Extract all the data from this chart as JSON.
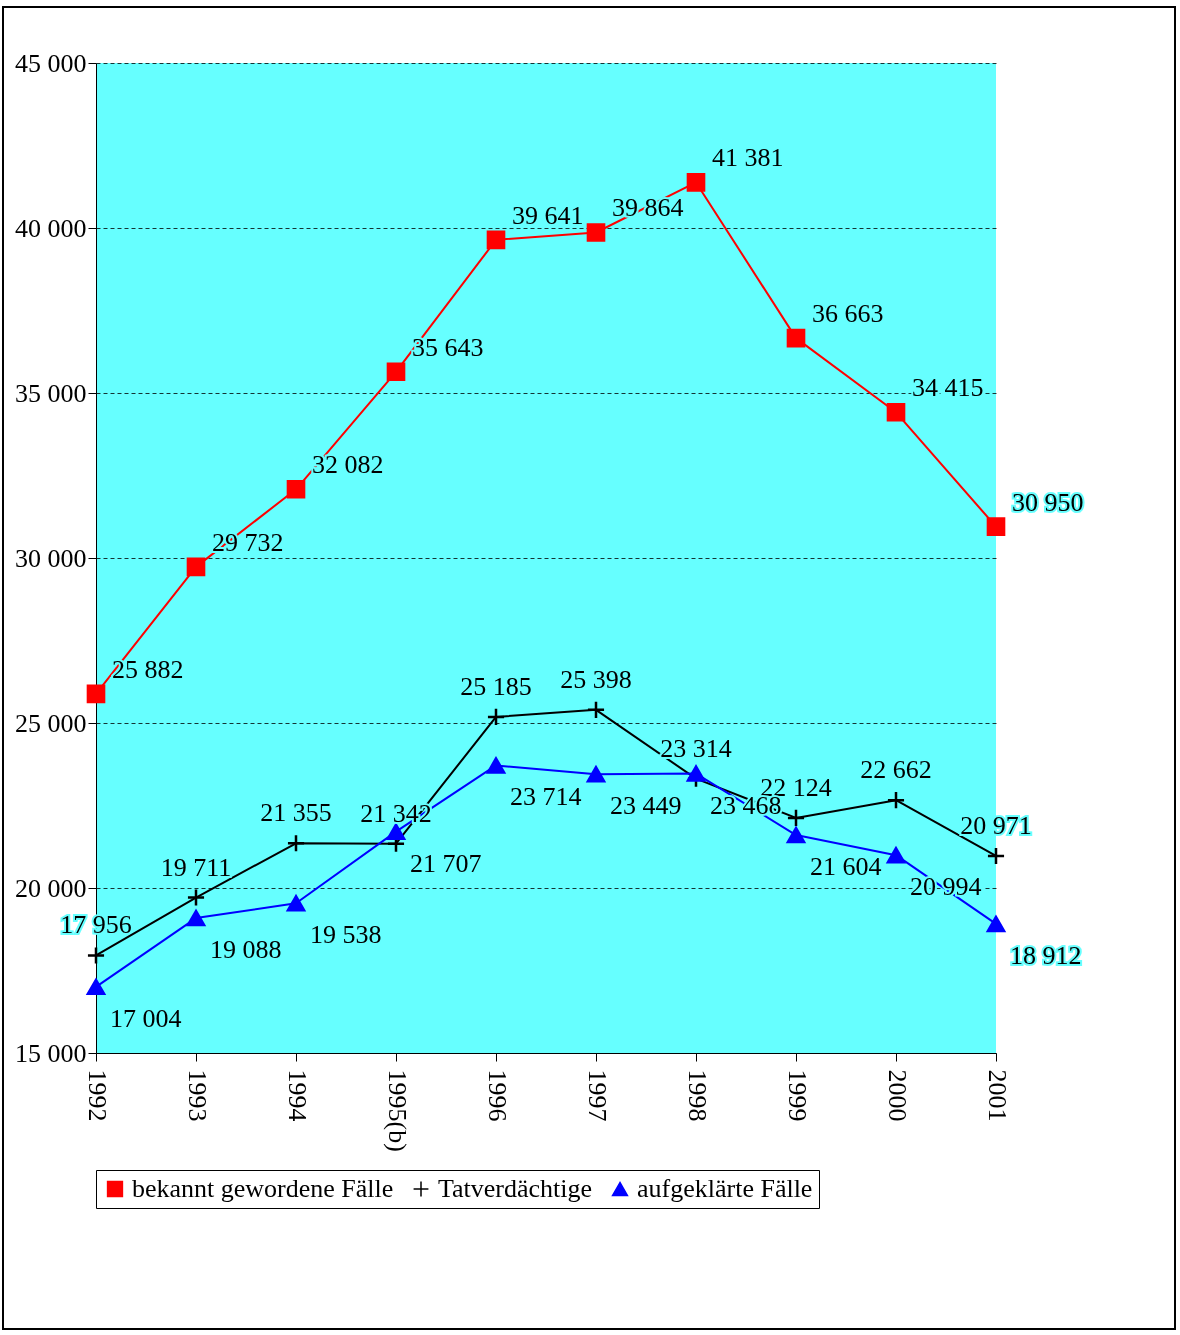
{
  "chart_data": {
    "type": "line",
    "categories": [
      "1992",
      "1993",
      "1994",
      "1995(b)",
      "1996",
      "1997",
      "1998",
      "1999",
      "2000",
      "2001"
    ],
    "series": [
      {
        "name": "bekannt gewordene Fälle",
        "color": "#ff0000",
        "marker": "square",
        "values": [
          25882,
          29732,
          32082,
          35643,
          39641,
          39864,
          41381,
          36663,
          34415,
          30950
        ],
        "value_labels": [
          "25 882",
          "29 732",
          "32 082",
          "35 643",
          "39 641",
          "39 864",
          "41 381",
          "36 663",
          "34 415",
          "30 950"
        ]
      },
      {
        "name": "Tatverdächtige",
        "color": "#000000",
        "marker": "cross",
        "values": [
          17956,
          19711,
          21355,
          21342,
          25185,
          25398,
          23314,
          22124,
          22662,
          20971
        ],
        "value_labels": [
          "17 956",
          "19 711",
          "21 355",
          "21 342",
          "25 185",
          "25 398",
          "23 314",
          "22 124",
          "22 662",
          "20 971"
        ]
      },
      {
        "name": "aufgeklärte Fälle",
        "color": "#0000ff",
        "marker": "triangle",
        "values": [
          17004,
          19088,
          19538,
          21707,
          23714,
          23449,
          23468,
          21604,
          20994,
          18912
        ],
        "value_labels": [
          "17 004",
          "19 088",
          "19 538",
          "21 707",
          "23 714",
          "23 449",
          "23 468",
          "21 604",
          "20 994",
          "18 912"
        ]
      }
    ],
    "ylim": [
      15000,
      45000
    ],
    "yticks": [
      {
        "value": 15000,
        "label": "15 000"
      },
      {
        "value": 20000,
        "label": "20 000"
      },
      {
        "value": 25000,
        "label": "25 000"
      },
      {
        "value": 30000,
        "label": "30 000"
      },
      {
        "value": 35000,
        "label": "35 000"
      },
      {
        "value": 40000,
        "label": "40 000"
      },
      {
        "value": 45000,
        "label": "45 000"
      }
    ],
    "grid": "y",
    "legend": "bottom"
  }
}
